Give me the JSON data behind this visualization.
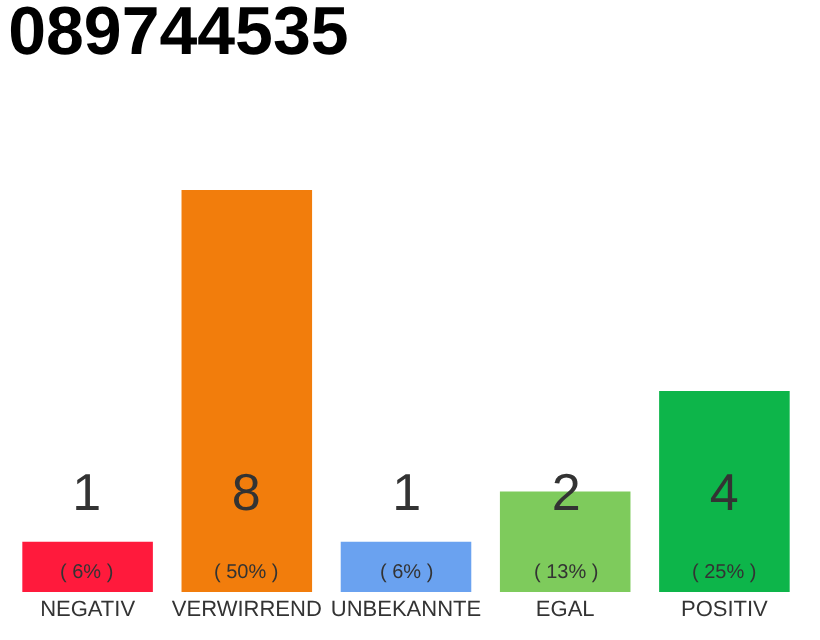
{
  "chart_data": {
    "type": "bar",
    "title": "089744535",
    "ylim": [
      0,
      8
    ],
    "tick_labels": "x",
    "categories": [
      "NEGATIV",
      "VERWIRREND",
      "UNBEKANNTE",
      "EGAL",
      "POSITIV"
    ],
    "values": [
      1,
      8,
      1,
      2,
      4
    ],
    "colors": [
      "#ff1a3c",
      "#f27d0c",
      "#6aa2f0",
      "#7ecb5c",
      "#0db54a"
    ],
    "value_labels": [
      "1\n( 6% )",
      "8\n( 50% )",
      "1\n( 6% )",
      "2\n( 13% )",
      "4\n( 25% )"
    ]
  }
}
